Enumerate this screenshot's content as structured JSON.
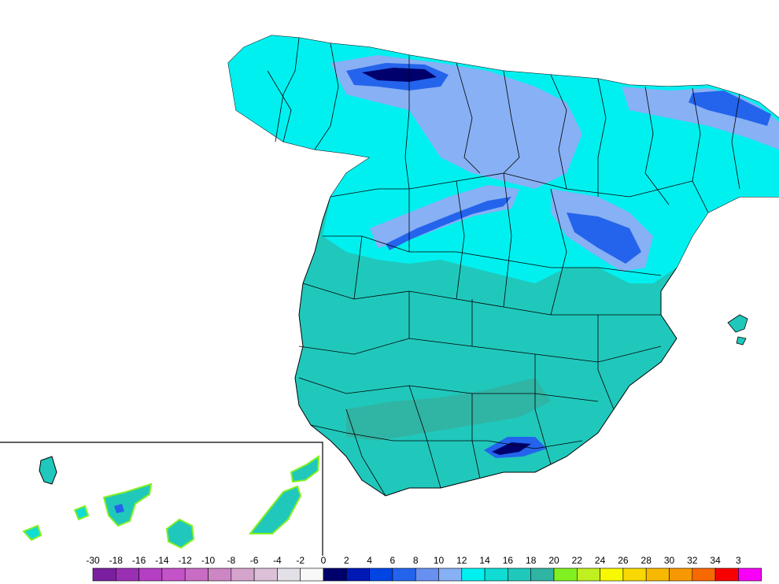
{
  "legend": {
    "labels": [
      "-30",
      "-18",
      "-16",
      "-14",
      "-12",
      "-10",
      "-8",
      "-6",
      "-4",
      "-2",
      "0",
      "2",
      "4",
      "6",
      "8",
      "10",
      "12",
      "14",
      "16",
      "18",
      "20",
      "22",
      "24",
      "26",
      "28",
      "30",
      "32",
      "34",
      "3"
    ],
    "colors": [
      "#7a1fa0",
      "#9a2fb4",
      "#b43fc4",
      "#c452c8",
      "#c86cc4",
      "#cc86c4",
      "#d4a4cc",
      "#dcc0d8",
      "#e4e0e8",
      "#f8f8f8",
      "#00006c",
      "#0018b4",
      "#0044e4",
      "#2464ec",
      "#6890f0",
      "#88b0f4",
      "#00f0f0",
      "#10dcd4",
      "#20c8bc",
      "#30b4a4",
      "#80f020",
      "#c0f020",
      "#f8f800",
      "#f8d800",
      "#f8b800",
      "#f89800",
      "#f86800",
      "#f80000",
      "#f800f8"
    ]
  },
  "map": {
    "colors": {
      "deep_blue": "#00006c",
      "blue": "#2464ec",
      "light_blue": "#88b0f4",
      "cyan": "#00f0f0",
      "teal_light": "#10dcd4",
      "teal": "#20c8bc",
      "teal_dark": "#30b4a4",
      "canary_green": "#80f020",
      "border": "#000000"
    }
  }
}
